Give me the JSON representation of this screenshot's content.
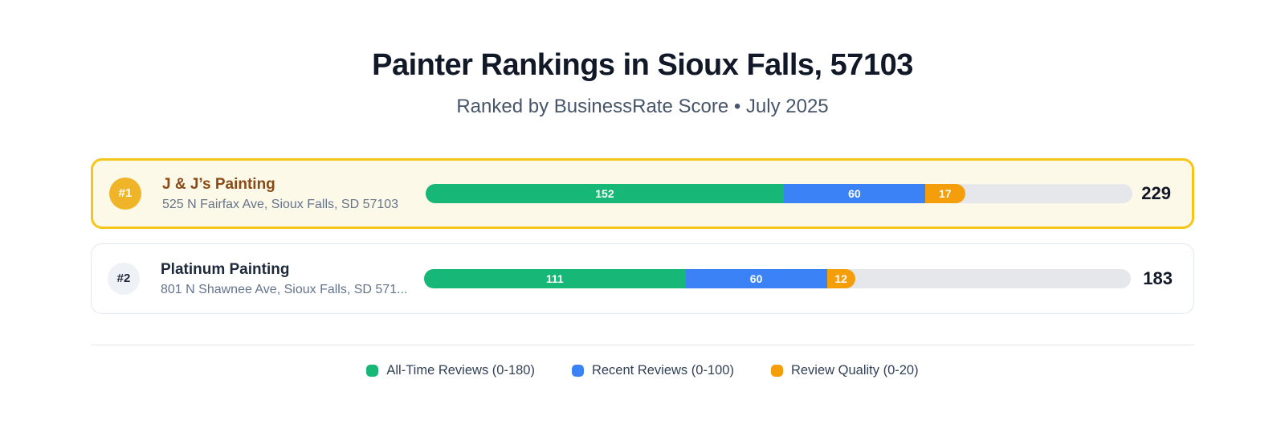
{
  "header": {
    "title": "Painter Rankings in Sioux Falls, 57103",
    "subtitle": "Ranked by BusinessRate Score • July 2025"
  },
  "colors": {
    "all_time_reviews": "#17b877",
    "recent_reviews": "#3b82f6",
    "review_quality": "#f59e0b",
    "track": "#e5e7eb",
    "rank1_border": "#f5c518",
    "rank1_card_bg": "#fdf9e8",
    "rank1_badge": "#f0b429",
    "rank1_name": "#8b4a15"
  },
  "rankings": [
    {
      "rank": "#1",
      "name": "J & J’s Painting",
      "address": "525 N Fairfax Ave, Sioux Falls, SD 57103",
      "score": 229,
      "highlighted": true,
      "segments": [
        {
          "name": "All-Time Reviews",
          "value": 152
        },
        {
          "name": "Recent Reviews",
          "value": 60
        },
        {
          "name": "Review Quality",
          "value": 17
        }
      ]
    },
    {
      "rank": "#2",
      "name": "Platinum Painting",
      "address": "801 N Shawnee Ave, Sioux Falls, SD 571...",
      "score": 183,
      "highlighted": false,
      "segments": [
        {
          "name": "All-Time Reviews",
          "value": 111
        },
        {
          "name": "Recent Reviews",
          "value": 60
        },
        {
          "name": "Review Quality",
          "value": 12
        }
      ]
    }
  ],
  "legend": {
    "items": [
      {
        "label": "All-Time Reviews (0-180)",
        "color": "#17b877"
      },
      {
        "label": "Recent Reviews (0-100)",
        "color": "#3b82f6"
      },
      {
        "label": "Review Quality (0-20)",
        "color": "#f59e0b"
      }
    ]
  },
  "chart_data": {
    "type": "bar",
    "orientation": "horizontal",
    "stacked": true,
    "title": "Painter Rankings in Sioux Falls, 57103",
    "subtitle": "Ranked by BusinessRate Score • July 2025",
    "categories": [
      "J & J’s Painting",
      "Platinum Painting"
    ],
    "series": [
      {
        "name": "All-Time Reviews (0-180)",
        "values": [
          152,
          111
        ],
        "color": "#17b877"
      },
      {
        "name": "Recent Reviews (0-100)",
        "values": [
          60,
          60
        ],
        "color": "#3b82f6"
      },
      {
        "name": "Review Quality (0-20)",
        "values": [
          17,
          12
        ],
        "color": "#f59e0b"
      }
    ],
    "totals": [
      229,
      183
    ],
    "xlim": [
      0,
      300
    ],
    "grid": false,
    "legend_position": "bottom"
  }
}
